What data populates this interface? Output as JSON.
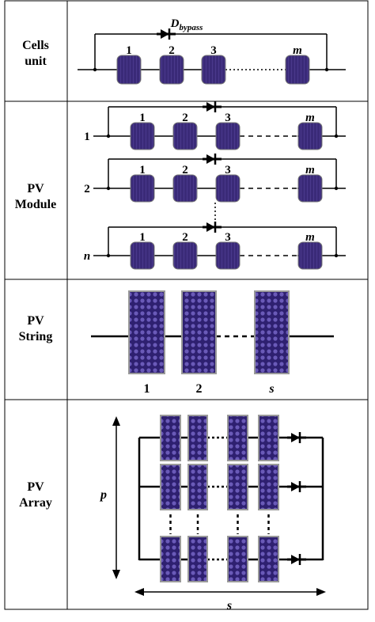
{
  "rows": [
    {
      "label": [
        "Cells",
        "unit"
      ],
      "bypass": {
        "main": "D",
        "sub": "bypass"
      },
      "cells": [
        "1",
        "2",
        "3",
        "m"
      ]
    },
    {
      "label": [
        "PV",
        "Module"
      ],
      "modules": [
        {
          "index": "1",
          "cells": [
            "1",
            "2",
            "3",
            "m"
          ]
        },
        {
          "index": "2",
          "cells": [
            "1",
            "2",
            "3",
            "m"
          ]
        },
        {
          "index": "n",
          "cells": [
            "1",
            "2",
            "3",
            "m"
          ]
        }
      ]
    },
    {
      "label": [
        "PV",
        "String"
      ],
      "panels": [
        "1",
        "2",
        "s"
      ]
    },
    {
      "label": [
        "PV",
        "Array"
      ],
      "rows_symbol": "p",
      "cols_symbol": "s"
    }
  ]
}
